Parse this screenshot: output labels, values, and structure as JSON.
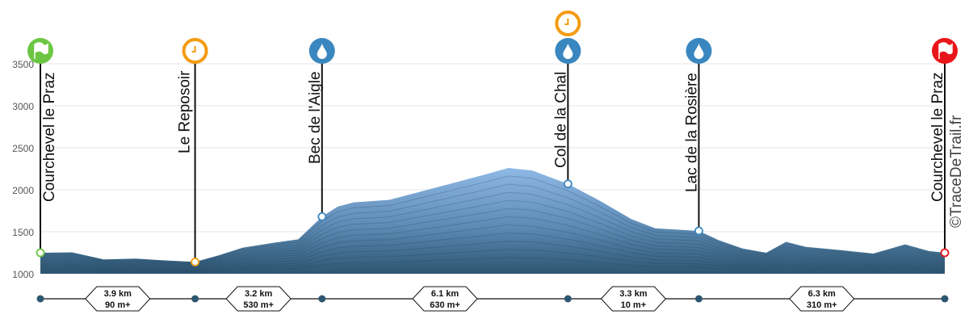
{
  "chart_data": {
    "type": "area",
    "xlabel": "",
    "ylabel": "",
    "ylim": [
      1000,
      3500
    ],
    "yticks": [
      "1000",
      "1500",
      "2000",
      "2500",
      "3000",
      "3500"
    ],
    "grid": true,
    "profile_km_m": [
      [
        0,
        1250
      ],
      [
        0.8,
        1255
      ],
      [
        1.6,
        1170
      ],
      [
        2.4,
        1180
      ],
      [
        3.1,
        1160
      ],
      [
        3.9,
        1140
      ],
      [
        4.5,
        1220
      ],
      [
        5.1,
        1310
      ],
      [
        5.9,
        1370
      ],
      [
        6.5,
        1410
      ],
      [
        7.1,
        1680
      ],
      [
        7.5,
        1800
      ],
      [
        7.9,
        1850
      ],
      [
        8.8,
        1880
      ],
      [
        9.6,
        1980
      ],
      [
        10.4,
        2080
      ],
      [
        11.2,
        2180
      ],
      [
        11.8,
        2260
      ],
      [
        12.4,
        2230
      ],
      [
        13.3,
        2070
      ],
      [
        14.1,
        1870
      ],
      [
        14.9,
        1650
      ],
      [
        15.5,
        1540
      ],
      [
        16.6,
        1510
      ],
      [
        17.1,
        1400
      ],
      [
        17.7,
        1300
      ],
      [
        18.3,
        1250
      ],
      [
        18.8,
        1380
      ],
      [
        19.3,
        1320
      ],
      [
        20.2,
        1280
      ],
      [
        21.0,
        1240
      ],
      [
        21.8,
        1350
      ],
      [
        22.4,
        1270
      ],
      [
        22.8,
        1250
      ]
    ],
    "waypoints": [
      {
        "name": "Courchevel le Praz",
        "km": 0,
        "elevation": 1250,
        "icon": "start-flag-icon",
        "color": "#6cc644"
      },
      {
        "name": "Le Reposoir",
        "km": 3.9,
        "elevation": 1140,
        "icon": "clock-icon",
        "color": "#f39c12"
      },
      {
        "name": "Bec de l'Aigle",
        "km": 7.1,
        "elevation": 1680,
        "icon": "water-drop-icon",
        "color": "#3a87c0"
      },
      {
        "name": "Col de la Chal",
        "km": 13.3,
        "elevation": 2070,
        "icon": "water-drop-icon",
        "color": "#3a87c0",
        "extra_icon": "clock-icon"
      },
      {
        "name": "Lac de la Rosière",
        "km": 16.6,
        "elevation": 1510,
        "icon": "water-drop-icon",
        "color": "#3a87c0"
      },
      {
        "name": "Courchevel le Praz",
        "km": 22.8,
        "elevation": 1250,
        "icon": "finish-flag-icon",
        "color": "#e8151b"
      }
    ],
    "segments": [
      {
        "distance": "3.9 km",
        "gain": "90 m+"
      },
      {
        "distance": "3.2 km",
        "gain": "530 m+"
      },
      {
        "distance": "6.1 km",
        "gain": "630 m+"
      },
      {
        "distance": "3.3 km",
        "gain": "10 m+"
      },
      {
        "distance": "6.3 km",
        "gain": "310 m+"
      }
    ],
    "colors": {
      "fill_top": "#8fb9e6",
      "fill_bottom": "#2d5670",
      "segment_dot": "#2d5670"
    }
  },
  "watermark": "©TraceDeTrail.fr"
}
